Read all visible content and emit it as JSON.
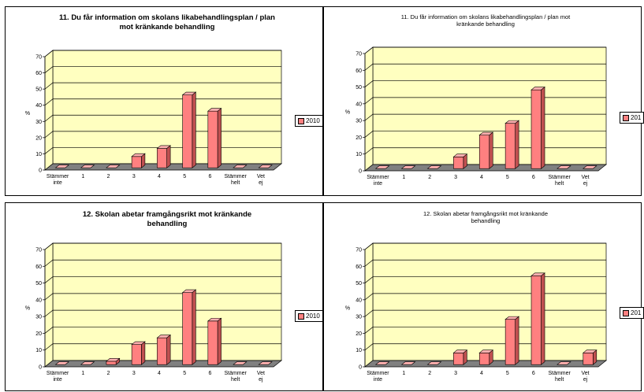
{
  "chart_data": [
    {
      "type": "bar",
      "title": "11. Du får information om skolans likabehandlingsplan / plan mot kränkande behandling",
      "ylabel": "%",
      "ylim": [
        0,
        70
      ],
      "yticks": [
        0,
        10,
        20,
        30,
        40,
        50,
        60,
        70
      ],
      "categories": [
        "Stämmer inte",
        "1",
        "2",
        "3",
        "4",
        "5",
        "6",
        "Stämmer helt",
        "Vet ej"
      ],
      "series": [
        {
          "name": "2010",
          "values": [
            0,
            0,
            0,
            7,
            12,
            45,
            35,
            0,
            0
          ]
        }
      ],
      "legend": "right"
    },
    {
      "type": "bar",
      "title": "11. Du får information om skolans likabehandlingsplan / plan mot kränkande behandling",
      "ylabel": "%",
      "ylim": [
        0,
        70
      ],
      "yticks": [
        0,
        10,
        20,
        30,
        40,
        50,
        60,
        70
      ],
      "categories": [
        "Stämmer inte",
        "1",
        "2",
        "3",
        "4",
        "5",
        "6",
        "Stämmer helt",
        "Vet ej"
      ],
      "series": [
        {
          "name": "201",
          "values": [
            0,
            0,
            0,
            7,
            20,
            27,
            47,
            0,
            0
          ]
        }
      ],
      "legend": "right"
    },
    {
      "type": "bar",
      "title": "12. Skolan abetar framgångsrikt mot kränkande behandling",
      "ylabel": "%",
      "ylim": [
        0,
        70
      ],
      "yticks": [
        0,
        10,
        20,
        30,
        40,
        50,
        60,
        70
      ],
      "categories": [
        "Stämmer inte",
        "1",
        "2",
        "3",
        "4",
        "5",
        "6",
        "Stämmer helt",
        "Vet ej"
      ],
      "series": [
        {
          "name": "2010",
          "values": [
            0,
            0,
            2,
            12,
            16,
            43,
            26,
            0,
            0
          ]
        }
      ],
      "legend": "right"
    },
    {
      "type": "bar",
      "title": "12. Skolan abetar framgångsrikt mot kränkande behandling",
      "ylabel": "%",
      "ylim": [
        0,
        70
      ],
      "yticks": [
        0,
        10,
        20,
        30,
        40,
        50,
        60,
        70
      ],
      "categories": [
        "Stämmer inte",
        "1",
        "2",
        "3",
        "4",
        "5",
        "6",
        "Stämmer helt",
        "Vet ej"
      ],
      "series": [
        {
          "name": "201",
          "values": [
            0,
            0,
            0,
            7,
            7,
            27,
            53,
            0,
            7
          ]
        }
      ],
      "legend": "right"
    }
  ],
  "colors": {
    "plot_bg": "#ffffc0",
    "bar": "#ff8080",
    "floor": "#808080"
  }
}
